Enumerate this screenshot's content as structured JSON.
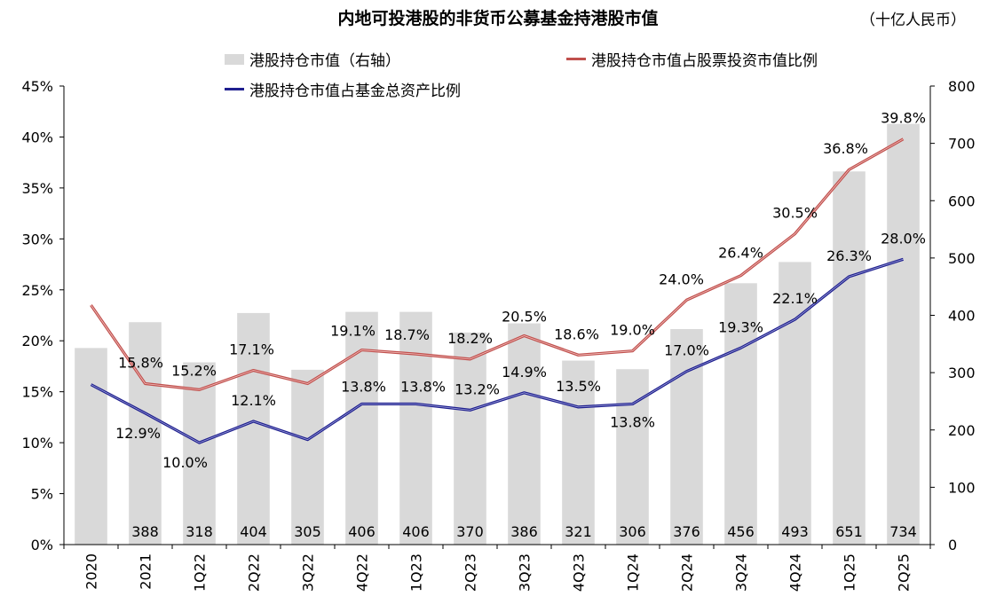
{
  "chart_data": {
    "type": "bar+line",
    "title": "内地可投港股的非货币公募基金持港股市值",
    "unit": "（十亿人民币）",
    "categories": [
      "2020",
      "2021",
      "1Q22",
      "2Q22",
      "3Q22",
      "4Q22",
      "1Q23",
      "2Q23",
      "3Q23",
      "4Q23",
      "1Q24",
      "2Q24",
      "3Q24",
      "4Q24",
      "1Q25",
      "2Q25"
    ],
    "bar_series": {
      "name": "港股持仓市值（右轴）",
      "axis": "right",
      "values": [
        343,
        388,
        318,
        404,
        305,
        406,
        406,
        370,
        386,
        321,
        306,
        376,
        456,
        493,
        651,
        734
      ],
      "labels": [
        "",
        "388",
        "318",
        "404",
        "305",
        "406",
        "406",
        "370",
        "386",
        "321",
        "306",
        "376",
        "456",
        "493",
        "651",
        "734"
      ],
      "color": "#d9d9d9"
    },
    "line_series": [
      {
        "name": "港股持仓市值占股票投资市值比例",
        "axis": "left",
        "color": "#c0504d",
        "values": [
          23.5,
          15.8,
          15.2,
          17.1,
          15.8,
          19.1,
          18.7,
          18.2,
          20.5,
          18.6,
          19.0,
          24.0,
          26.4,
          30.5,
          36.8,
          39.8
        ],
        "labels": [
          "",
          "15.8%",
          "15.2%",
          "17.1%",
          "",
          "19.1%",
          "18.7%",
          "18.2%",
          "20.5%",
          "18.6%",
          "19.0%",
          "24.0%",
          "26.4%",
          "30.5%",
          "36.8%",
          "39.8%"
        ]
      },
      {
        "name": "港股持仓市值占基金总资产比例",
        "axis": "left",
        "color": "#1f1f8f",
        "values": [
          15.7,
          12.9,
          10.0,
          12.1,
          10.3,
          13.8,
          13.8,
          13.2,
          14.9,
          13.5,
          13.8,
          17.0,
          19.3,
          22.1,
          26.3,
          28.0
        ],
        "labels": [
          "",
          "12.9%",
          "10.0%",
          "12.1%",
          "",
          "13.8%",
          "13.8%",
          "13.2%",
          "14.9%",
          "13.5%",
          "13.8%",
          "17.0%",
          "19.3%",
          "22.1%",
          "26.3%",
          "28.0%"
        ]
      }
    ],
    "left_axis": {
      "ylim": [
        0,
        45
      ],
      "ticks": [
        "0%",
        "5%",
        "10%",
        "15%",
        "20%",
        "25%",
        "30%",
        "35%",
        "40%",
        "45%"
      ]
    },
    "right_axis": {
      "ylim": [
        0,
        800
      ],
      "ticks": [
        "0",
        "100",
        "200",
        "300",
        "400",
        "500",
        "600",
        "700",
        "800"
      ]
    },
    "legend_placement": "top",
    "grid": false
  }
}
